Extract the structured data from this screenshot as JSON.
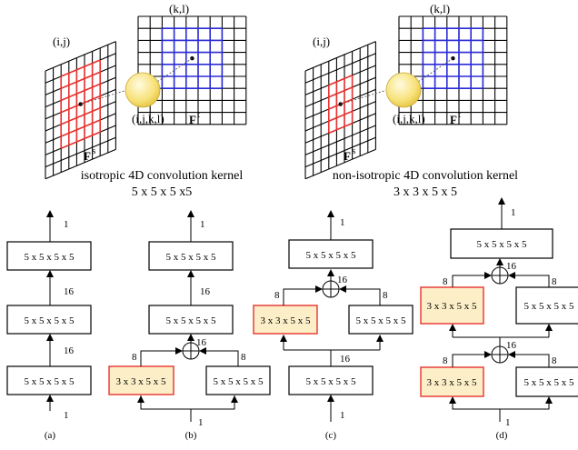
{
  "top": {
    "left": {
      "label_ij": "(i,j)",
      "label_kl": "(k,l)",
      "label_ijkl": "(i,j,k,l)",
      "label_fs": "F",
      "label_fs_sup": "s",
      "label_ft": "F",
      "label_ft_sup": "t",
      "caption_line1": "isotropic 4D convolution kernel",
      "caption_line2": "5 x 5 x 5 x5"
    },
    "right": {
      "label_ij": "(i,j)",
      "label_kl": "(k,l)",
      "label_ijkl": "(i,j,k,l)",
      "label_fs": "F",
      "label_fs_sup": "s",
      "label_ft": "F",
      "label_ft_sup": "t",
      "caption_line1": "non-isotropic 4D convolution kernel",
      "caption_line2": "3 x 3 x 5 x 5"
    }
  },
  "colors": {
    "source_grid_highlight": "#e8322e",
    "target_grid_highlight": "#2b2bd6",
    "sphere": "#f7e27a",
    "highlight_box_fill": "#fcefc8",
    "highlight_box_border": "#e8322e"
  },
  "diagrams": {
    "a": {
      "label": "(a)",
      "boxes": [
        "5 x 5 x 5 x 5",
        "5 x 5 x 5 x 5",
        "5 x 5 x 5 x 5"
      ],
      "channels": [
        "1",
        "16",
        "16",
        "1"
      ]
    },
    "b": {
      "label": "(b)",
      "top_boxes": [
        "5 x 5 x 5 x 5",
        "5 x 5 x 5 x 5"
      ],
      "branch_left": "3 x 3 x 5 x 5",
      "branch_right": "5 x 5 x 5 x 5",
      "channels": [
        "1",
        "16",
        "16",
        "8",
        "8",
        "1"
      ]
    },
    "c": {
      "label": "(c)",
      "top_box": "5 x 5 x 5 x 5",
      "branch_left": "3 x 3 x 5 x 5",
      "branch_right": "5 x 5 x 5 x 5",
      "bottom_box": "5 x 5 x 5 x 5",
      "channels": [
        "1",
        "16",
        "8",
        "8",
        "16",
        "1"
      ]
    },
    "d": {
      "label": "(d)",
      "top_box": "5 x 5 x 5 x 5",
      "upper_branch_left": "3 x 3 x 5 x 5",
      "upper_branch_right": "5 x 5 x 5 x 5",
      "lower_branch_left": "3 x 3 x 5 x 5",
      "lower_branch_right": "5 x 5 x 5 x 5",
      "channels": [
        "1",
        "16",
        "8",
        "8",
        "16",
        "8",
        "8",
        "1"
      ]
    }
  }
}
